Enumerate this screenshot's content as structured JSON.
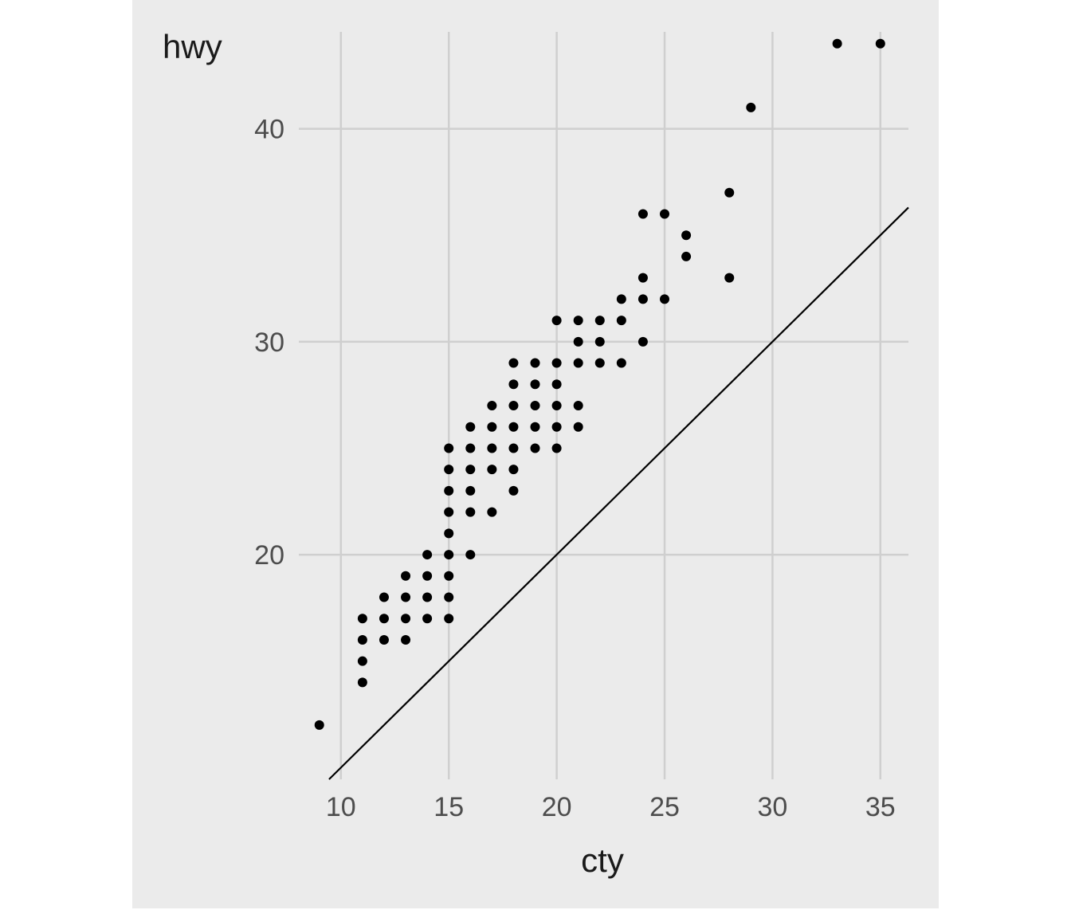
{
  "chart_data": {
    "type": "scatter",
    "xlabel": "cty",
    "ylabel": "hwy",
    "x_ticks": [
      10,
      15,
      20,
      25,
      30,
      35
    ],
    "y_ticks": [
      20,
      30,
      40
    ],
    "xlim": [
      8.05,
      36.3
    ],
    "ylim": [
      9.45,
      44.55
    ],
    "grid": true,
    "reference_line": {
      "slope": 1,
      "intercept": 0
    },
    "points": [
      [
        9,
        12
      ],
      [
        11,
        14
      ],
      [
        11,
        15
      ],
      [
        11,
        16
      ],
      [
        11,
        17
      ],
      [
        12,
        16
      ],
      [
        12,
        17
      ],
      [
        12,
        18
      ],
      [
        13,
        16
      ],
      [
        13,
        17
      ],
      [
        13,
        18
      ],
      [
        13,
        19
      ],
      [
        14,
        17
      ],
      [
        14,
        18
      ],
      [
        14,
        19
      ],
      [
        14,
        20
      ],
      [
        15,
        17
      ],
      [
        15,
        18
      ],
      [
        15,
        19
      ],
      [
        15,
        20
      ],
      [
        15,
        21
      ],
      [
        15,
        22
      ],
      [
        15,
        23
      ],
      [
        15,
        24
      ],
      [
        15,
        25
      ],
      [
        16,
        20
      ],
      [
        16,
        22
      ],
      [
        16,
        23
      ],
      [
        16,
        24
      ],
      [
        16,
        25
      ],
      [
        16,
        26
      ],
      [
        17,
        22
      ],
      [
        17,
        24
      ],
      [
        17,
        25
      ],
      [
        17,
        26
      ],
      [
        17,
        27
      ],
      [
        18,
        23
      ],
      [
        18,
        24
      ],
      [
        18,
        25
      ],
      [
        18,
        26
      ],
      [
        18,
        27
      ],
      [
        18,
        28
      ],
      [
        18,
        29
      ],
      [
        19,
        25
      ],
      [
        19,
        26
      ],
      [
        19,
        27
      ],
      [
        19,
        28
      ],
      [
        19,
        29
      ],
      [
        20,
        25
      ],
      [
        20,
        26
      ],
      [
        20,
        27
      ],
      [
        20,
        28
      ],
      [
        20,
        29
      ],
      [
        20,
        31
      ],
      [
        21,
        26
      ],
      [
        21,
        27
      ],
      [
        21,
        29
      ],
      [
        21,
        30
      ],
      [
        21,
        31
      ],
      [
        22,
        29
      ],
      [
        22,
        30
      ],
      [
        22,
        31
      ],
      [
        23,
        29
      ],
      [
        23,
        31
      ],
      [
        23,
        32
      ],
      [
        24,
        30
      ],
      [
        24,
        32
      ],
      [
        24,
        33
      ],
      [
        24,
        36
      ],
      [
        25,
        32
      ],
      [
        25,
        36
      ],
      [
        26,
        34
      ],
      [
        26,
        35
      ],
      [
        28,
        33
      ],
      [
        28,
        37
      ],
      [
        29,
        41
      ],
      [
        33,
        44
      ],
      [
        35,
        44
      ]
    ]
  }
}
